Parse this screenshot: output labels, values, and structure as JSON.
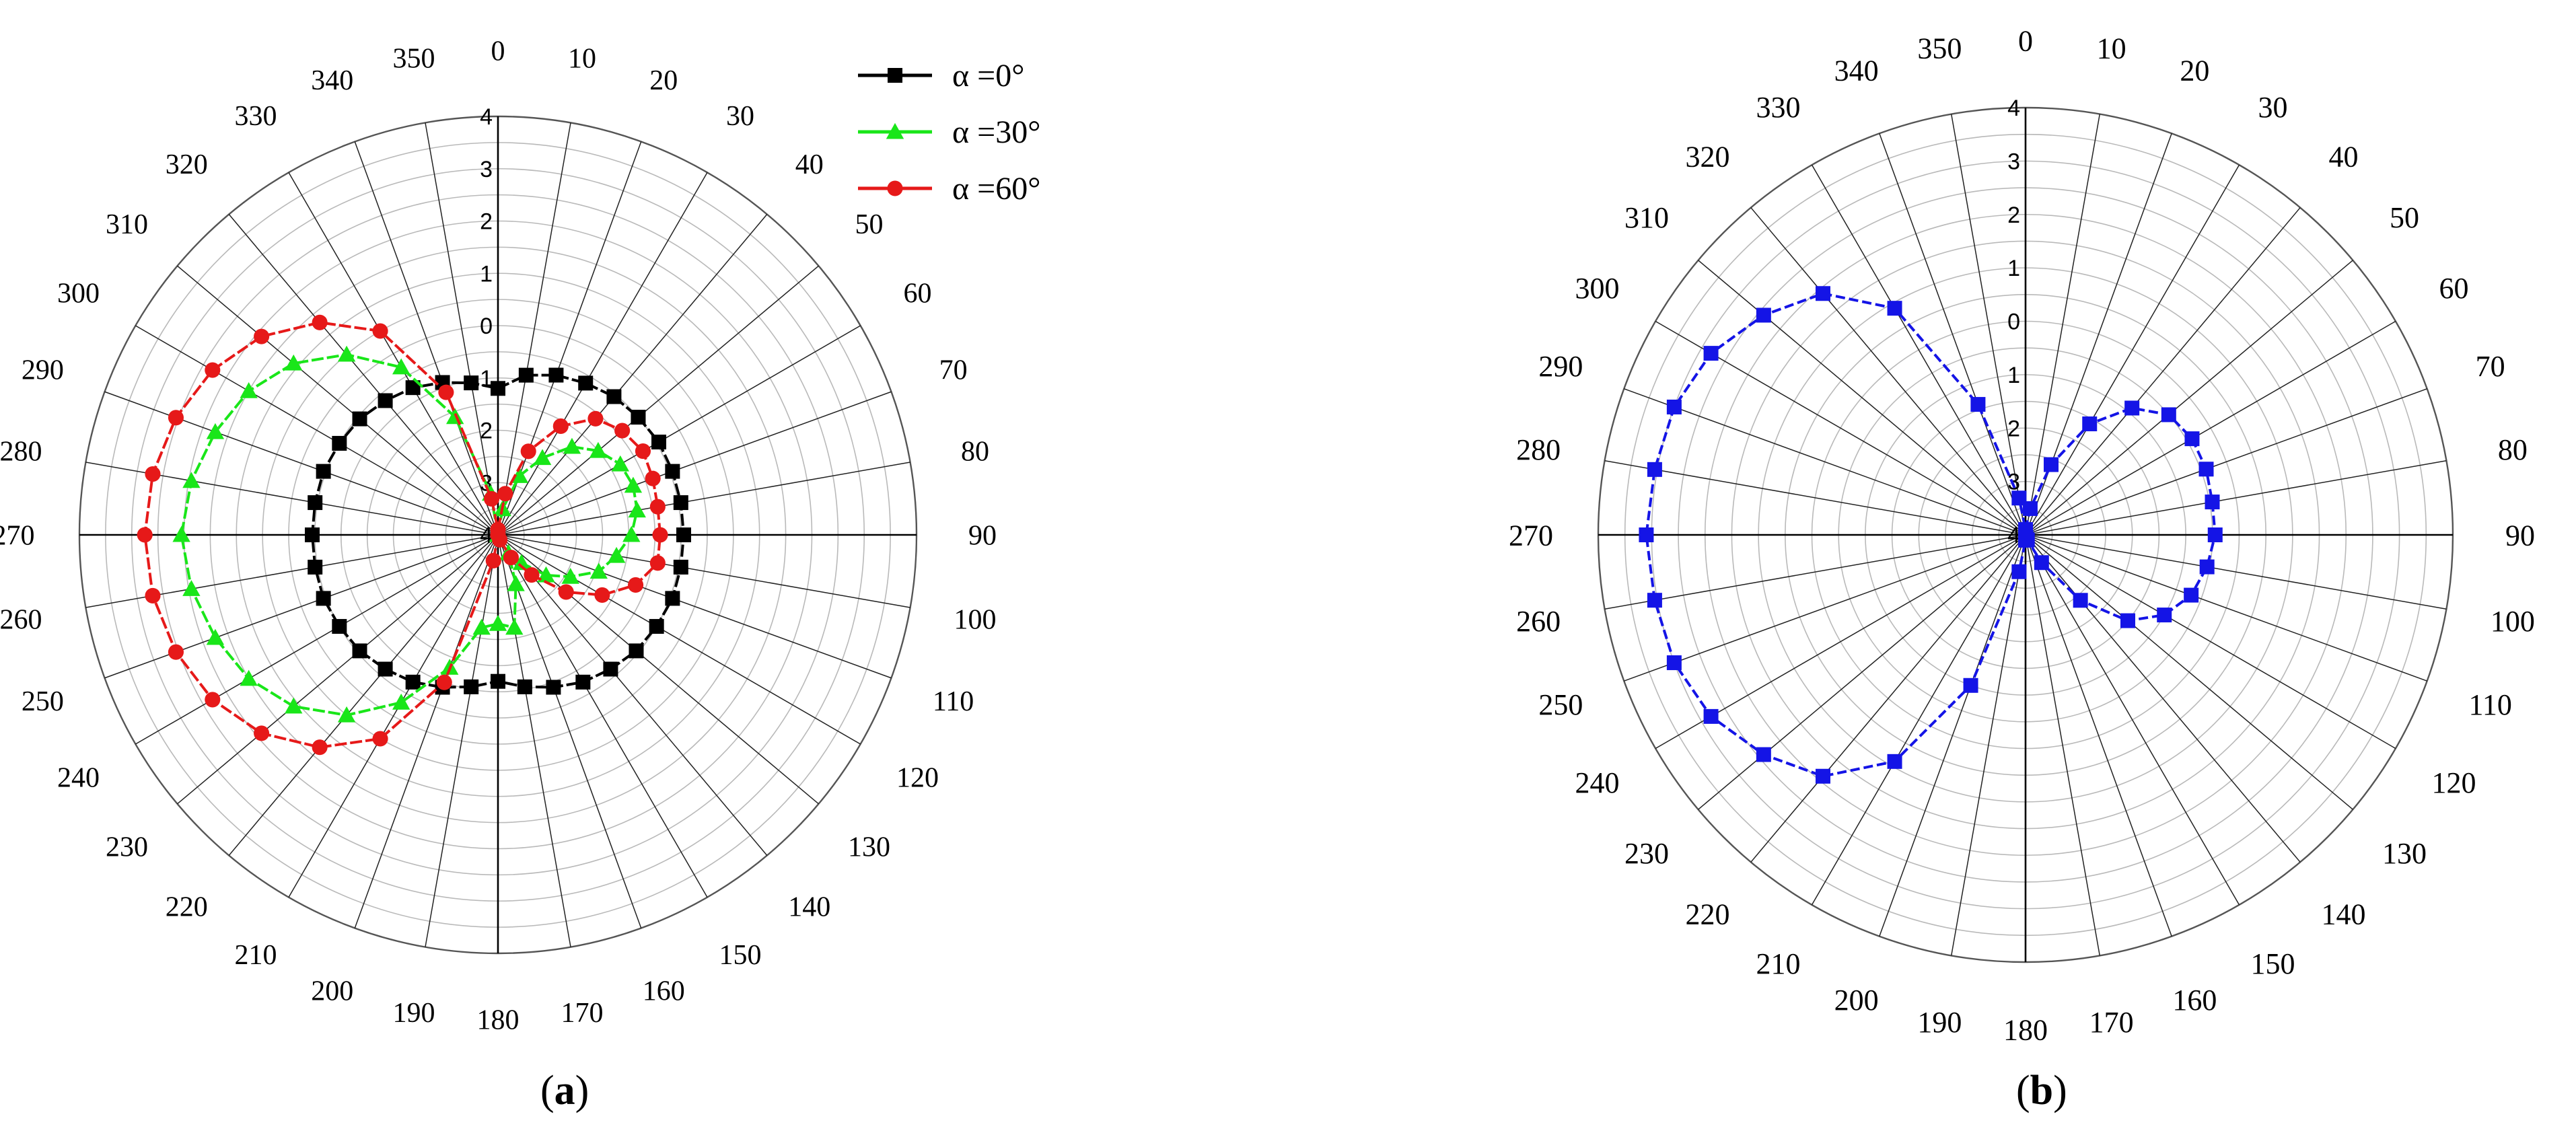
{
  "chart_data": [
    {
      "type": "polar-line",
      "panel": "a",
      "caption": "a",
      "angular_ticks": [
        0,
        10,
        20,
        30,
        40,
        50,
        60,
        70,
        80,
        90,
        100,
        110,
        120,
        130,
        140,
        150,
        160,
        170,
        180,
        190,
        200,
        210,
        220,
        230,
        240,
        250,
        260,
        270,
        280,
        290,
        300,
        310,
        320,
        330,
        340,
        350
      ],
      "radial_ticks": [
        4,
        3,
        2,
        1,
        0,
        -1,
        -2,
        -3,
        -4
      ],
      "radial_tick_labels": [
        "4",
        "3",
        "2",
        "1",
        "0",
        "1",
        "2",
        "3",
        "4"
      ],
      "rlim": [
        -4,
        4
      ],
      "grid": true,
      "legend_position": "top-right",
      "series": [
        {
          "name": "α =0°",
          "color": "#000000",
          "marker": "square",
          "theta": [
            0,
            10,
            20,
            30,
            40,
            50,
            60,
            70,
            80,
            90,
            100,
            110,
            120,
            130,
            140,
            150,
            160,
            170,
            180,
            190,
            200,
            210,
            220,
            230,
            240,
            250,
            260,
            270,
            280,
            290,
            300,
            310,
            320,
            330,
            340,
            350
          ],
          "r": [
            -1.2,
            -0.9,
            -0.75,
            -0.65,
            -0.55,
            -0.5,
            -0.45,
            -0.45,
            -0.45,
            -0.45,
            -0.45,
            -0.45,
            -0.5,
            -0.55,
            -0.65,
            -0.75,
            -0.9,
            -1.05,
            -1.2,
            -1.05,
            -0.9,
            -0.75,
            -0.65,
            -0.55,
            -0.5,
            -0.45,
            -0.45,
            -0.45,
            -0.45,
            -0.45,
            -0.5,
            -0.55,
            -0.65,
            -0.75,
            -0.9,
            -1.05
          ]
        },
        {
          "name": "α =30°",
          "color": "#19e619",
          "marker": "triangle",
          "theta": [
            0,
            10,
            20,
            30,
            40,
            50,
            60,
            70,
            80,
            90,
            100,
            110,
            120,
            130,
            140,
            150,
            160,
            170,
            180,
            190,
            200,
            210,
            220,
            230,
            240,
            250,
            260,
            270,
            280,
            290,
            300,
            310,
            320,
            330,
            340,
            350
          ],
          "r": [
            -4,
            -3.5,
            -2.8,
            -2.3,
            -1.8,
            -1.5,
            -1.3,
            -1.25,
            -1.3,
            -1.45,
            -1.7,
            -1.95,
            -2.4,
            -2.8,
            -3.3,
            -3.6,
            -3.0,
            -2.2,
            -2.3,
            -2.2,
            -1.3,
            -0.3,
            0.5,
            1.1,
            1.5,
            1.75,
            1.95,
            2.05,
            1.95,
            1.75,
            1.5,
            1.1,
            0.5,
            -0.3,
            -1.6,
            -3.2
          ]
        },
        {
          "name": "α =60°",
          "color": "#e61919",
          "marker": "circle",
          "theta": [
            0,
            10,
            20,
            30,
            40,
            50,
            60,
            70,
            80,
            90,
            100,
            110,
            120,
            130,
            140,
            150,
            160,
            170,
            180,
            190,
            200,
            210,
            220,
            230,
            240,
            250,
            260,
            270,
            280,
            290,
            300,
            310,
            320,
            330,
            340,
            350
          ],
          "r": [
            -3.9,
            -3.2,
            -2.3,
            -1.6,
            -1.1,
            -0.9,
            -0.8,
            -0.85,
            -0.9,
            -0.9,
            -0.9,
            -1.2,
            -1.7,
            -2.3,
            -3.0,
            -3.5,
            -3.9,
            -4.0,
            -4.0,
            -3.5,
            -1.0,
            0.5,
            1.3,
            1.9,
            2.3,
            2.55,
            2.7,
            2.75,
            2.7,
            2.55,
            2.3,
            1.9,
            1.3,
            0.5,
            -1.1,
            -3.3
          ]
        }
      ]
    },
    {
      "type": "polar-line",
      "panel": "b",
      "caption": "b",
      "angular_ticks": [
        0,
        10,
        20,
        30,
        40,
        50,
        60,
        70,
        80,
        90,
        100,
        110,
        120,
        130,
        140,
        150,
        160,
        170,
        180,
        190,
        200,
        210,
        220,
        230,
        240,
        250,
        260,
        270,
        280,
        290,
        300,
        310,
        320,
        330,
        340,
        350
      ],
      "radial_ticks": [
        4,
        3,
        2,
        1,
        0,
        -1,
        -2,
        -3,
        -4
      ],
      "radial_tick_labels": [
        "4",
        "3",
        "2",
        "1",
        "0",
        "1",
        "2",
        "3",
        "4"
      ],
      "rlim": [
        -4,
        4
      ],
      "grid": true,
      "series": [
        {
          "name": "",
          "color": "#1414e6",
          "marker": "square",
          "theta": [
            0,
            10,
            20,
            30,
            40,
            50,
            60,
            70,
            80,
            90,
            100,
            110,
            120,
            130,
            140,
            150,
            160,
            170,
            180,
            190,
            200,
            210,
            220,
            230,
            240,
            250,
            260,
            270,
            280,
            290,
            300,
            310,
            320,
            330,
            340,
            350
          ],
          "r": [
            -3.9,
            -3.5,
            -2.6,
            -1.6,
            -0.9,
            -0.5,
            -0.4,
            -0.4,
            -0.45,
            -0.45,
            -0.55,
            -0.7,
            -1.0,
            -1.5,
            -2.4,
            -3.4,
            -3.9,
            -3.95,
            -3.9,
            -3.3,
            -1.0,
            0.9,
            1.9,
            2.4,
            2.8,
            3.0,
            3.05,
            3.1,
            3.05,
            3.0,
            2.8,
            2.4,
            1.9,
            0.9,
            -1.4,
            -3.3
          ]
        }
      ]
    }
  ]
}
